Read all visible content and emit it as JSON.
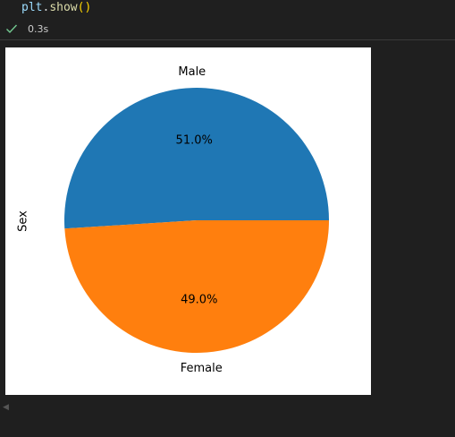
{
  "code": {
    "var": "plt",
    "dot": ".",
    "fn": "show",
    "parens": "()"
  },
  "status": {
    "icon": "check-icon",
    "exec_time": "0.3s",
    "color": "#73c991"
  },
  "chart_data": {
    "type": "pie",
    "ylabel": "Sex",
    "slices": [
      {
        "label": "Male",
        "value": 51.0,
        "pct_label": "51.0%",
        "color": "#1f77b4"
      },
      {
        "label": "Female",
        "value": 49.0,
        "pct_label": "49.0%",
        "color": "#ff7f0e"
      }
    ],
    "start_angle_deg": 0,
    "direction": "counterclockwise"
  }
}
